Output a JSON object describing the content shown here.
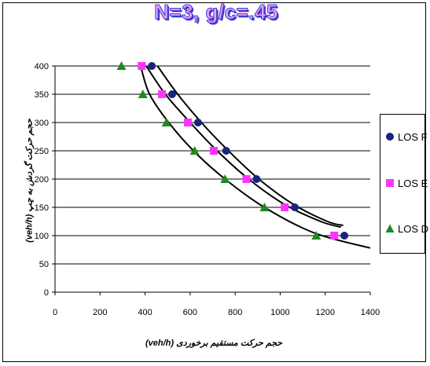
{
  "chart_data": {
    "type": "scatter",
    "title": "N=3, g/c=.45",
    "xlabel": "(veh/h) حجم حرکت مستقیم برخوردی",
    "ylabel": "(veh/h) حجم حرکت گردش به چپ",
    "xlim": [
      0,
      1400
    ],
    "ylim": [
      0,
      400
    ],
    "xticks": [
      "0",
      "200",
      "400",
      "600",
      "800",
      "1000",
      "1200",
      "1400"
    ],
    "yticks": [
      "0",
      "50",
      "100",
      "150",
      "200",
      "250",
      "300",
      "350",
      "400"
    ],
    "grid": "horizontal",
    "legend_position": "right",
    "series": [
      {
        "name": "LOS F",
        "marker": "circle",
        "color": "#1a237e",
        "x": [
          430,
          520,
          635,
          760,
          895,
          1065,
          1285
        ],
        "y": [
          400,
          350,
          300,
          250,
          200,
          150,
          100
        ]
      },
      {
        "name": "LOS E",
        "marker": "square",
        "color": "#ff33ff",
        "x": [
          385,
          475,
          590,
          705,
          850,
          1020,
          1240
        ],
        "y": [
          400,
          350,
          300,
          250,
          200,
          150,
          100
        ]
      },
      {
        "name": "LOS D",
        "marker": "triangle",
        "color": "#1f8a1f",
        "x": [
          295,
          390,
          495,
          620,
          755,
          930,
          1160
        ],
        "y": [
          400,
          350,
          300,
          250,
          200,
          150,
          100
        ]
      }
    ],
    "trendlines": [
      {
        "series": "LOS F",
        "x": [
          455,
          545,
          650,
          770,
          905,
          1060,
          1210,
          1280
        ],
        "y": [
          400,
          350,
          300,
          250,
          200,
          155,
          125,
          118
        ]
      },
      {
        "series": "LOS E",
        "x": [
          405,
          490,
          600,
          720,
          860,
          1020,
          1180,
          1270
        ],
        "y": [
          400,
          350,
          300,
          250,
          200,
          155,
          125,
          115
        ]
      },
      {
        "series": "LOS D",
        "x": [
          380,
          420,
          505,
          615,
          755,
          930,
          1150,
          1400
        ],
        "y": [
          400,
          350,
          300,
          250,
          200,
          150,
          105,
          78
        ]
      }
    ]
  }
}
